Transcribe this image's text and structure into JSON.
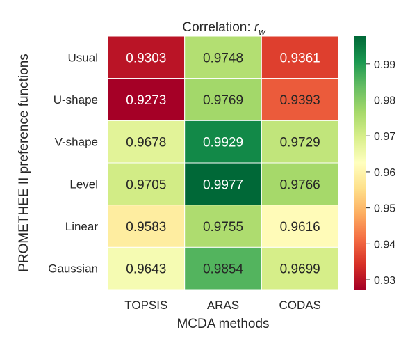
{
  "chart_data": {
    "type": "heatmap",
    "title_prefix": "Correlation: ",
    "title_var": "r",
    "title_sub": "w",
    "xlabel": "MCDA methods",
    "ylabel": "PROMETHEE II preference functions",
    "x_categories": [
      "TOPSIS",
      "ARAS",
      "CODAS"
    ],
    "y_categories": [
      "Usual",
      "U-shape",
      "V-shape",
      "Level",
      "Linear",
      "Gaussian"
    ],
    "values": [
      [
        0.9303,
        0.9748,
        0.9361
      ],
      [
        0.9273,
        0.9769,
        0.9393
      ],
      [
        0.9678,
        0.9929,
        0.9729
      ],
      [
        0.9705,
        0.9977,
        0.9766
      ],
      [
        0.9583,
        0.9755,
        0.9616
      ],
      [
        0.9643,
        0.9854,
        0.9699
      ]
    ],
    "value_labels": [
      [
        "0.9303",
        "0.9748",
        "0.9361"
      ],
      [
        "0.9273",
        "0.9769",
        "0.9393"
      ],
      [
        "0.9678",
        "0.9929",
        "0.9729"
      ],
      [
        "0.9705",
        "0.9977",
        "0.9766"
      ],
      [
        "0.9583",
        "0.9755",
        "0.9616"
      ],
      [
        "0.9643",
        "0.9854",
        "0.9699"
      ]
    ],
    "colormap": "RdYlGn",
    "vmin": 0.9273,
    "vmax": 0.9977,
    "colorbar_ticks": [
      0.93,
      0.94,
      0.95,
      0.96,
      0.97,
      0.98,
      0.99
    ],
    "colorbar_tick_labels": [
      "0.93",
      "0.94",
      "0.95",
      "0.96",
      "0.97",
      "0.98",
      "0.99"
    ],
    "grid": false
  }
}
